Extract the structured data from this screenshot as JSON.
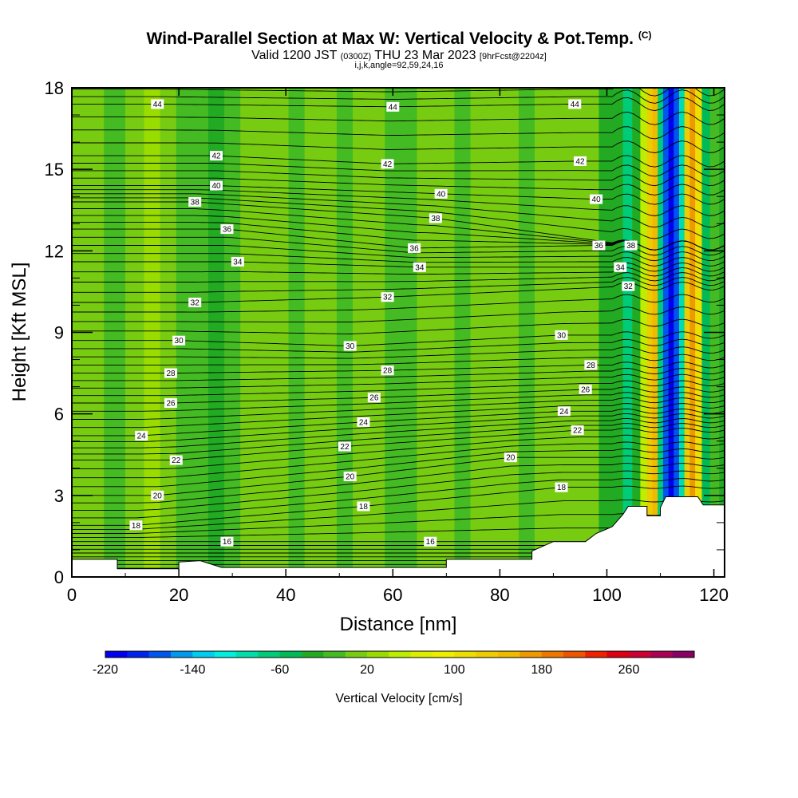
{
  "header": {
    "title": "Wind-Parallel Section at Max W: Vertical Velocity & Pot.Temp.",
    "title_mark": "(C)",
    "valid_prefix": "Valid 1200 JST",
    "valid_utc": "(0300Z)",
    "valid_date": "THU 23 Mar 2023",
    "forecast": "[9hrFcst@2204z]",
    "indices": "i,j,k,angle=92,59,24,16"
  },
  "chart_data": {
    "type": "heatmap",
    "xlabel": "Distance [nm]",
    "ylabel": "Height [Kft MSL]",
    "xlim": [
      0,
      122
    ],
    "ylim": [
      0,
      18
    ],
    "x_ticks": [
      0,
      20,
      40,
      60,
      80,
      100,
      120
    ],
    "y_ticks": [
      0,
      3,
      6,
      9,
      12,
      15,
      18
    ],
    "colorbar": {
      "label": "Vertical Velocity [cm/s]",
      "range": [
        -220,
        300
      ],
      "step": 20,
      "tick_labels": [
        "-220",
        "-140",
        "-60",
        "20",
        "100",
        "180",
        "260"
      ],
      "tick_values": [
        -220,
        -140,
        -60,
        20,
        100,
        180,
        260
      ],
      "colors": [
        "#0000ee",
        "#0022ee",
        "#0055ee",
        "#0099ee",
        "#00ccee",
        "#00eedd",
        "#00ddaa",
        "#00cc77",
        "#00bb55",
        "#22aa22",
        "#44bb22",
        "#77cc11",
        "#99dd00",
        "#bbee00",
        "#ddee00",
        "#eeee00",
        "#eedd00",
        "#eecc00",
        "#eebb00",
        "#ee9900",
        "#ee7700",
        "#ee5500",
        "#ee2200",
        "#dd0011",
        "#cc0033",
        "#aa0055",
        "#880066"
      ]
    },
    "vertical_velocity_bands": [
      {
        "x": 0,
        "w": 0
      },
      {
        "x": 4,
        "w": 4
      },
      {
        "x": 8,
        "w": -2
      },
      {
        "x": 12,
        "w": 16
      },
      {
        "x": 15,
        "w": 22
      },
      {
        "x": 18,
        "w": 12
      },
      {
        "x": 21,
        "w": -6
      },
      {
        "x": 24,
        "w": -16
      },
      {
        "x": 27,
        "w": -22
      },
      {
        "x": 30,
        "w": -10
      },
      {
        "x": 33,
        "w": 4
      },
      {
        "x": 36,
        "w": 8
      },
      {
        "x": 39,
        "w": 0
      },
      {
        "x": 42,
        "w": -8
      },
      {
        "x": 45,
        "w": 14
      },
      {
        "x": 48,
        "w": 2
      },
      {
        "x": 51,
        "w": -2
      },
      {
        "x": 54,
        "w": 4
      },
      {
        "x": 57,
        "w": 8
      },
      {
        "x": 60,
        "w": -4
      },
      {
        "x": 63,
        "w": -12
      },
      {
        "x": 66,
        "w": 10
      },
      {
        "x": 68,
        "w": 18
      },
      {
        "x": 70,
        "w": 6
      },
      {
        "x": 73,
        "w": -8
      },
      {
        "x": 76,
        "w": 0
      },
      {
        "x": 79,
        "w": 8
      },
      {
        "x": 82,
        "w": 6
      },
      {
        "x": 85,
        "w": -4
      },
      {
        "x": 88,
        "w": 6
      },
      {
        "x": 91,
        "w": 14
      },
      {
        "x": 94,
        "w": 2
      },
      {
        "x": 97,
        "w": 12
      },
      {
        "x": 100,
        "w": -24
      },
      {
        "x": 102,
        "w": -40
      },
      {
        "x": 104,
        "w": -70
      },
      {
        "x": 105.5,
        "w": -30
      },
      {
        "x": 107,
        "w": 40
      },
      {
        "x": 108,
        "w": 120
      },
      {
        "x": 109,
        "w": 150
      },
      {
        "x": 110,
        "w": -80
      },
      {
        "x": 111,
        "w": -170
      },
      {
        "x": 112,
        "w": -210
      },
      {
        "x": 113,
        "w": -180
      },
      {
        "x": 114,
        "w": -100
      },
      {
        "x": 115,
        "w": 120
      },
      {
        "x": 116,
        "w": 160
      },
      {
        "x": 117,
        "w": 110
      },
      {
        "x": 118.5,
        "w": -60
      },
      {
        "x": 120,
        "w": -20
      },
      {
        "x": 122,
        "w": -30
      }
    ],
    "terrain": [
      {
        "x": 0,
        "h": 0.65
      },
      {
        "x": 8.5,
        "h": 0.65
      },
      {
        "x": 8.5,
        "h": 0.3
      },
      {
        "x": 20,
        "h": 0.3
      },
      {
        "x": 20,
        "h": 0.55
      },
      {
        "x": 24,
        "h": 0.6
      },
      {
        "x": 28,
        "h": 0.35
      },
      {
        "x": 70,
        "h": 0.35
      },
      {
        "x": 70,
        "h": 0.65
      },
      {
        "x": 86,
        "h": 0.65
      },
      {
        "x": 86,
        "h": 0.95
      },
      {
        "x": 90,
        "h": 1.3
      },
      {
        "x": 96,
        "h": 1.3
      },
      {
        "x": 98,
        "h": 1.6
      },
      {
        "x": 101,
        "h": 1.85
      },
      {
        "x": 103,
        "h": 2.3
      },
      {
        "x": 104,
        "h": 2.6
      },
      {
        "x": 107.5,
        "h": 2.6
      },
      {
        "x": 107.5,
        "h": 2.25
      },
      {
        "x": 110,
        "h": 2.25
      },
      {
        "x": 110,
        "h": 2.55
      },
      {
        "x": 111,
        "h": 2.95
      },
      {
        "x": 117,
        "h": 2.95
      },
      {
        "x": 118,
        "h": 2.65
      },
      {
        "x": 122,
        "h": 2.65
      }
    ],
    "isentropes": {
      "base_value": 16,
      "interval": 0.5,
      "label_points": [
        {
          "v": "44",
          "x": 16,
          "y": 17.4
        },
        {
          "v": "44",
          "x": 60,
          "y": 17.3
        },
        {
          "v": "44",
          "x": 94,
          "y": 17.4
        },
        {
          "v": "42",
          "x": 27,
          "y": 15.5
        },
        {
          "v": "42",
          "x": 59,
          "y": 15.2
        },
        {
          "v": "42",
          "x": 95,
          "y": 15.3
        },
        {
          "v": "40",
          "x": 27,
          "y": 14.4
        },
        {
          "v": "40",
          "x": 69,
          "y": 14.1
        },
        {
          "v": "40",
          "x": 98,
          "y": 13.9
        },
        {
          "v": "38",
          "x": 23,
          "y": 13.8
        },
        {
          "v": "38",
          "x": 68,
          "y": 13.2
        },
        {
          "v": "38",
          "x": 104.5,
          "y": 12.2
        },
        {
          "v": "36",
          "x": 29,
          "y": 12.8
        },
        {
          "v": "36",
          "x": 64,
          "y": 12.1
        },
        {
          "v": "36",
          "x": 98.5,
          "y": 12.2
        },
        {
          "v": "34",
          "x": 31,
          "y": 11.6
        },
        {
          "v": "34",
          "x": 65,
          "y": 11.4
        },
        {
          "v": "34",
          "x": 102.5,
          "y": 11.4
        },
        {
          "v": "32",
          "x": 23,
          "y": 10.1
        },
        {
          "v": "32",
          "x": 59,
          "y": 10.3
        },
        {
          "v": "32",
          "x": 104,
          "y": 10.7
        },
        {
          "v": "30",
          "x": 20,
          "y": 8.7
        },
        {
          "v": "30",
          "x": 52,
          "y": 8.5
        },
        {
          "v": "30",
          "x": 91.5,
          "y": 8.9
        },
        {
          "v": "28",
          "x": 18.5,
          "y": 7.5
        },
        {
          "v": "28",
          "x": 59,
          "y": 7.6
        },
        {
          "v": "28",
          "x": 97,
          "y": 7.8
        },
        {
          "v": "26",
          "x": 18.5,
          "y": 6.4
        },
        {
          "v": "26",
          "x": 56.5,
          "y": 6.6
        },
        {
          "v": "26",
          "x": 96,
          "y": 6.9
        },
        {
          "v": "24",
          "x": 13,
          "y": 5.2
        },
        {
          "v": "24",
          "x": 54.5,
          "y": 5.7
        },
        {
          "v": "24",
          "x": 92,
          "y": 6.1
        },
        {
          "v": "22",
          "x": 19.5,
          "y": 4.3
        },
        {
          "v": "22",
          "x": 51,
          "y": 4.8
        },
        {
          "v": "22",
          "x": 94.5,
          "y": 5.4
        },
        {
          "v": "20",
          "x": 16,
          "y": 3
        },
        {
          "v": "20",
          "x": 52,
          "y": 3.7
        },
        {
          "v": "20",
          "x": 82,
          "y": 4.4
        },
        {
          "v": "18",
          "x": 12,
          "y": 1.9
        },
        {
          "v": "18",
          "x": 54.5,
          "y": 2.6
        },
        {
          "v": "18",
          "x": 91.5,
          "y": 3.3
        },
        {
          "v": "16",
          "x": 29,
          "y": 1.3
        },
        {
          "v": "16",
          "x": 67,
          "y": 1.3
        }
      ]
    }
  }
}
